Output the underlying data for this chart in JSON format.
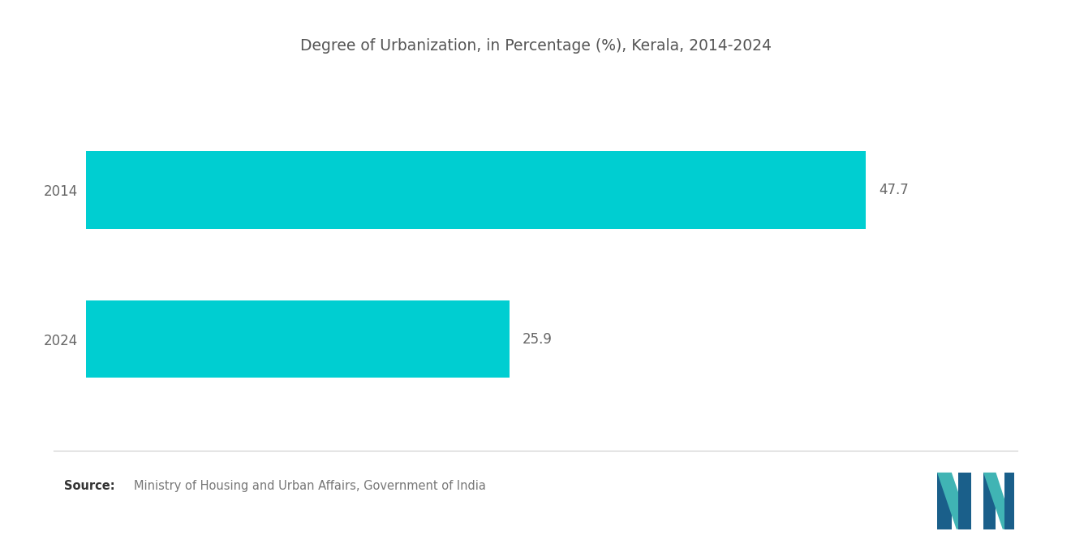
{
  "title": "Degree of Urbanization, in Percentage (%), Kerala, 2014-2024",
  "categories": [
    "2014",
    "2024"
  ],
  "values": [
    47.7,
    25.9
  ],
  "bar_color": "#00CED1",
  "background_color": "#ffffff",
  "xlim": [
    0,
    55
  ],
  "title_fontsize": 13.5,
  "label_fontsize": 12,
  "value_fontsize": 12,
  "source_text": "Ministry of Housing and Urban Affairs, Government of India",
  "source_label": "Source:",
  "bar_height": 0.52,
  "logo_dark_blue": "#1a5f8a",
  "logo_teal": "#40b4b4"
}
